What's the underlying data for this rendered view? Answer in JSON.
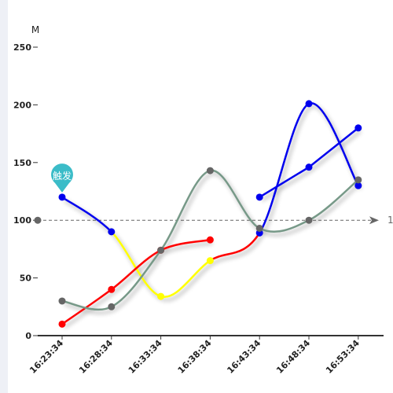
{
  "chart_data": {
    "type": "line",
    "categories": [
      "16:23:34",
      "16:28:34",
      "16:33:34",
      "16:38:34",
      "16:43:34",
      "16:48:34",
      "16:53:34"
    ],
    "y_unit": "M",
    "ylim": [
      0,
      250
    ],
    "y_ticks": [
      0,
      50,
      100,
      150,
      200,
      250
    ],
    "grid": false,
    "legend": "none",
    "series": [
      {
        "style": "straight",
        "color": "#0000ee",
        "values": [
          null,
          null,
          null,
          null,
          120,
          146,
          180
        ]
      },
      {
        "style": "smooth",
        "segments": [
          [
            0,
            1,
            "#0000ee"
          ],
          [
            1,
            3,
            "#ffff00"
          ],
          [
            3,
            4,
            "#ff0000"
          ],
          [
            4,
            6,
            "#0000ee"
          ]
        ],
        "marker_colors": [
          "#0000ee",
          "#0000ee",
          "#ffff00",
          "#ffff00",
          "#0000ee",
          "#0000ee",
          "#0000ee"
        ],
        "values": [
          120,
          90,
          34,
          65,
          89,
          201,
          130
        ]
      },
      {
        "style": "smooth",
        "color": "#ff0000",
        "values": [
          10,
          40,
          74,
          83,
          null,
          null,
          null
        ]
      },
      {
        "style": "smooth",
        "color": "#779988",
        "marker_color": "#666666",
        "values": [
          30,
          25,
          74,
          143,
          93,
          100,
          135
        ]
      }
    ],
    "annotations": {
      "pin_label": "触发",
      "pin_at": {
        "category": "16:23:34",
        "value": 120
      },
      "reference_value": 100,
      "reference_label": "1"
    },
    "axis_gradient_colors": [
      "#ff0000",
      "#0000ee"
    ]
  }
}
